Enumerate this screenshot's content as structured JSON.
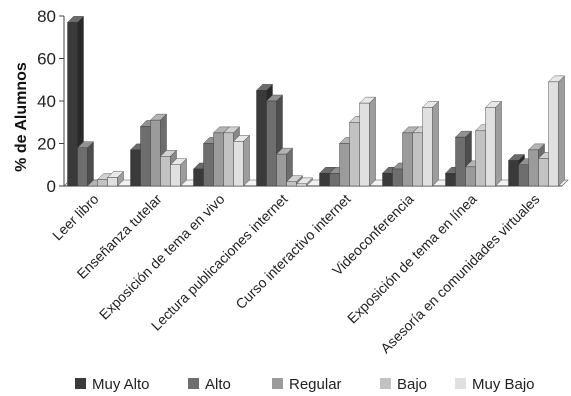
{
  "chart_data": {
    "type": "bar",
    "title": "",
    "xlabel": "",
    "ylabel": "% de Alumnos",
    "ylim": [
      0,
      80
    ],
    "yticks": [
      0,
      20,
      40,
      60,
      80
    ],
    "grid": false,
    "legend_position": "bottom",
    "style": "3d",
    "categories": [
      "Leer libro",
      "Enseñanza tutelar",
      "Exposición de tema en vivo",
      "Lectura publicaciones internet",
      "Curso interactivo internet",
      "Videoconferencia",
      "Exposición de tema en línea",
      "Asesoría en comunidades virtuales"
    ],
    "series": [
      {
        "name": "Muy Alto",
        "color": "#3a3a3a",
        "values": [
          77,
          17,
          8,
          45,
          6,
          6,
          6,
          12
        ]
      },
      {
        "name": "Alto",
        "color": "#6e6e6e",
        "values": [
          18,
          28,
          20,
          40,
          6,
          8,
          23,
          10
        ]
      },
      {
        "name": "Regular",
        "color": "#9b9b9b",
        "values": [
          0,
          31,
          25,
          15,
          20,
          25,
          9,
          17
        ]
      },
      {
        "name": "Bajo",
        "color": "#c2c2c2",
        "values": [
          3,
          14,
          25,
          2,
          30,
          25,
          26,
          13
        ]
      },
      {
        "name": "Muy Bajo",
        "color": "#e0e0e0",
        "values": [
          4,
          10,
          21,
          1,
          39,
          37,
          37,
          49
        ]
      }
    ]
  }
}
